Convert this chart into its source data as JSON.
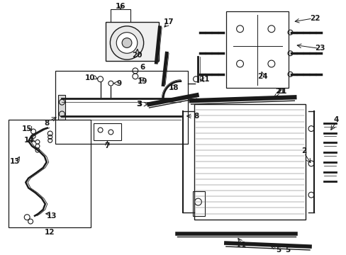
{
  "background_color": "#ffffff",
  "dark": "#1a1a1a",
  "gray": "#666666",
  "label_fs": 7.5,
  "fig_w": 4.89,
  "fig_h": 3.6,
  "dpi": 100
}
